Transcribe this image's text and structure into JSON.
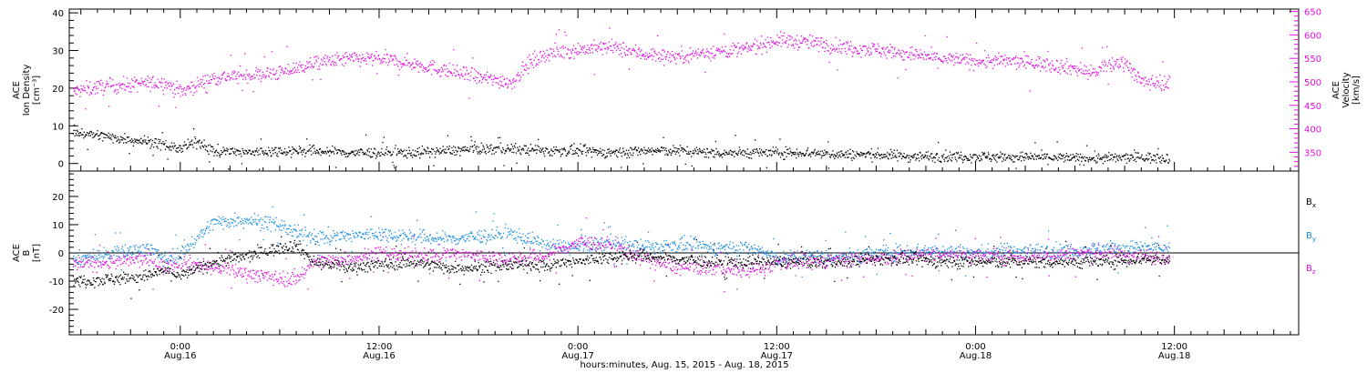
{
  "colors": {
    "axis": "#000000",
    "density": "#000000",
    "velocity": "#e010e0",
    "bx": "#000000",
    "by": "#1a8fe0",
    "bz": "#e010e0"
  },
  "x_axis": {
    "ticks": [
      {
        "time": "0:00",
        "date": "Aug.16",
        "hours": 24
      },
      {
        "time": "12:00",
        "date": "Aug.16",
        "hours": 36
      },
      {
        "time": "0:00",
        "date": "Aug.17",
        "hours": 48
      },
      {
        "time": "12:00",
        "date": "Aug.17",
        "hours": 60
      },
      {
        "time": "0:00",
        "date": "Aug.18",
        "hours": 72
      },
      {
        "time": "12:00",
        "date": "Aug.18",
        "hours": 84
      }
    ],
    "caption": "hours:minutes, Aug. 15, 2015 - Aug. 18, 2015",
    "range_hours": [
      17.3,
      91.5
    ]
  },
  "panel_top": {
    "ylabel_left": [
      "ACE",
      "Ion Density",
      "[cm⁻³]"
    ],
    "ylabel_right": [
      "ACE",
      "Velocity",
      "[km/s]"
    ],
    "left_ticks": [
      "0",
      "10",
      "20",
      "30",
      "40"
    ],
    "right_ticks": [
      "350",
      "400",
      "450",
      "500",
      "550",
      "600",
      "650"
    ]
  },
  "panel_bottom": {
    "ylabel_left": [
      "ACE",
      "B",
      "[nT]"
    ],
    "left_ticks": [
      "-20",
      "-10",
      "0",
      "10",
      "20"
    ],
    "legend": [
      {
        "main": "B",
        "sub": "x"
      },
      {
        "main": "B",
        "sub": "y"
      },
      {
        "main": "B",
        "sub": "z"
      }
    ]
  },
  "chart_data": [
    {
      "type": "scatter",
      "series": [
        {
          "name": "Ion Density",
          "axis": "left",
          "x": [
            17.5,
            20,
            22,
            23,
            24,
            25,
            26,
            28,
            30,
            32,
            34,
            36,
            38,
            40,
            42,
            44,
            46,
            48,
            50,
            52,
            54,
            56,
            58,
            60,
            62,
            64,
            66,
            68,
            70,
            72,
            74,
            76,
            78,
            80,
            82,
            83.7
          ],
          "y": [
            8.5,
            7,
            6,
            5,
            4,
            6,
            3.5,
            3,
            3.5,
            3.5,
            3,
            3,
            3,
            3.5,
            4,
            4,
            3.5,
            3.5,
            3,
            3.5,
            3.5,
            3,
            3,
            3,
            3,
            2.5,
            2.5,
            2,
            2,
            2,
            1.8,
            1.8,
            1.5,
            1.5,
            1.8,
            1.5
          ]
        },
        {
          "name": "Velocity",
          "axis": "right",
          "x": [
            17.5,
            19,
            21,
            23,
            24,
            26,
            28,
            30,
            31,
            32,
            34,
            36,
            38,
            40,
            42,
            44,
            45,
            46,
            48,
            50,
            52,
            54,
            56,
            58,
            60,
            62,
            64,
            66,
            68,
            70,
            72,
            74,
            76,
            78,
            79,
            80,
            81,
            82,
            83.7
          ],
          "y": [
            480,
            490,
            495,
            500,
            480,
            510,
            515,
            520,
            530,
            540,
            550,
            550,
            540,
            525,
            510,
            500,
            540,
            560,
            570,
            575,
            560,
            555,
            565,
            570,
            590,
            585,
            575,
            570,
            560,
            550,
            545,
            545,
            540,
            530,
            520,
            535,
            545,
            500,
            500
          ],
          "ylim": [
            310,
            655
          ]
        }
      ],
      "ylim": [
        -2,
        41
      ]
    },
    {
      "type": "scatter",
      "x": [
        17.5,
        20,
        22,
        23,
        24,
        26,
        28,
        30,
        31,
        32,
        34,
        36,
        38,
        40,
        42,
        44,
        46,
        48,
        50,
        52,
        54,
        56,
        58,
        59,
        60,
        62,
        64,
        66,
        68,
        70,
        72,
        74,
        76,
        78,
        80,
        82,
        83.7
      ],
      "series": [
        {
          "name": "Bx",
          "y": [
            -10,
            -9,
            -8,
            -6,
            -8,
            -3,
            -1,
            2,
            3,
            -3,
            -5,
            -4,
            -3,
            -5,
            -5,
            -4,
            -4,
            -3,
            -1,
            -1,
            -2,
            -3,
            -3,
            -3,
            -3,
            -3,
            -3,
            -2,
            -2,
            -3,
            -3,
            -3,
            -3,
            -3,
            -3,
            -2,
            -2
          ]
        },
        {
          "name": "By",
          "y": [
            -2,
            0,
            2,
            -2,
            0,
            11,
            12,
            10,
            7,
            6,
            6,
            7,
            6,
            5,
            6,
            7,
            3,
            2,
            4,
            2,
            3,
            2,
            2,
            1,
            -2,
            -1,
            -1,
            0,
            1,
            1,
            0,
            1,
            1,
            1,
            2,
            2,
            2
          ]
        },
        {
          "name": "Bz",
          "y": [
            -4,
            -3,
            -2,
            -5,
            -3,
            -5,
            -7,
            -9,
            -9,
            -3,
            -2,
            0,
            -1,
            0,
            -1,
            -2,
            -1,
            4,
            3,
            -2,
            -5,
            -5,
            -6,
            -6,
            -3,
            -3,
            -2,
            -2,
            -1,
            0,
            -1,
            -1,
            -1,
            0,
            0,
            -1,
            -1
          ]
        }
      ],
      "ylim": [
        -29,
        29
      ]
    }
  ]
}
